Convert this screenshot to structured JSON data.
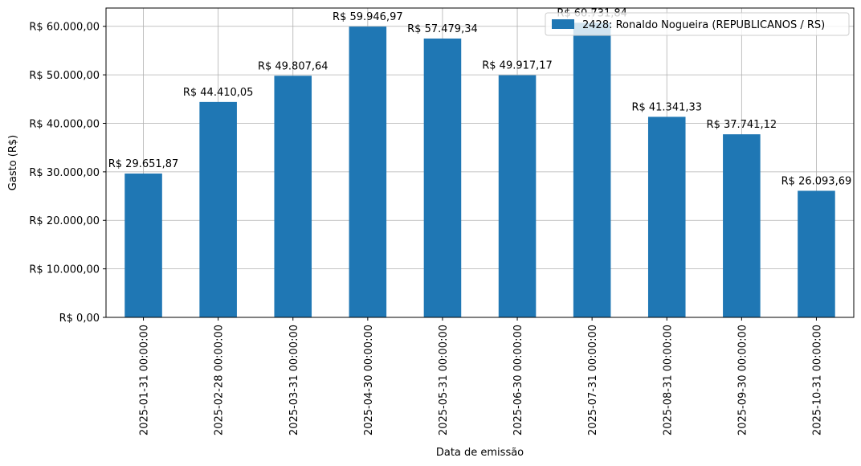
{
  "chart_data": {
    "type": "bar",
    "xlabel": "Data de emissão",
    "ylabel": "Gasto (R$)",
    "categories": [
      "2025-01-31 00:00:00",
      "2025-02-28 00:00:00",
      "2025-03-31 00:00:00",
      "2025-04-30 00:00:00",
      "2025-05-31 00:00:00",
      "2025-06-30 00:00:00",
      "2025-07-31 00:00:00",
      "2025-08-31 00:00:00",
      "2025-09-30 00:00:00",
      "2025-10-31 00:00:00"
    ],
    "series": [
      {
        "name": "2428: Ronaldo Nogueira (REPUBLICANOS / RS)",
        "color": "#1f77b4",
        "values": [
          29651.87,
          44410.05,
          49807.64,
          59946.97,
          57479.34,
          49917.17,
          60731.84,
          41341.33,
          37741.12,
          26093.69
        ],
        "labels": [
          "R$ 29.651,87",
          "R$ 44.410,05",
          "R$ 49.807,64",
          "R$ 59.946,97",
          "R$ 57.479,34",
          "R$ 49.917,17",
          "R$ 60.731,84",
          "R$ 41.341,33",
          "R$ 37.741,12",
          "R$ 26.093,69"
        ]
      }
    ],
    "yticks": [
      0,
      10000,
      20000,
      30000,
      40000,
      50000,
      60000
    ],
    "ytick_labels": [
      "R$ 0,00",
      "R$ 10.000,00",
      "R$ 20.000,00",
      "R$ 30.000,00",
      "R$ 40.000,00",
      "R$ 50.000,00",
      "R$ 60.000,00"
    ],
    "ylim": [
      0,
      63768
    ],
    "grid": true,
    "legend_position": "top-right"
  }
}
